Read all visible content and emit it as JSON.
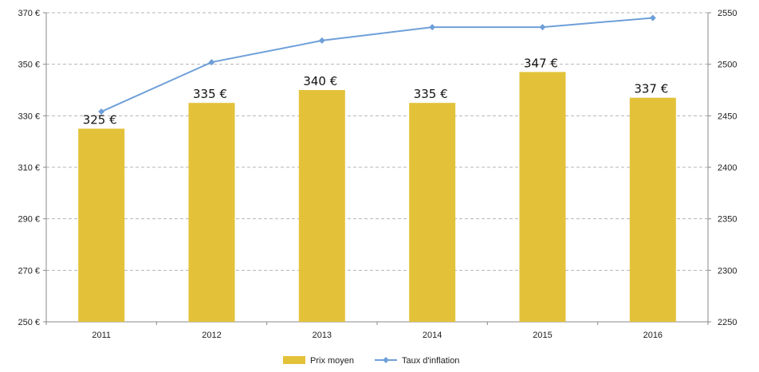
{
  "chart_data": {
    "type": "bar",
    "categories": [
      "2011",
      "2012",
      "2013",
      "2014",
      "2015",
      "2016"
    ],
    "series": [
      {
        "name": "Prix moyen",
        "type": "bar",
        "axis": "left",
        "values": [
          325,
          335,
          340,
          335,
          347,
          337
        ],
        "data_labels": [
          "325 €",
          "335 €",
          "340 €",
          "335 €",
          "347 €",
          "337 €"
        ],
        "color": "#E3C23A"
      },
      {
        "name": "Taux d'inflation",
        "type": "line",
        "axis": "right",
        "values": [
          2454,
          2502,
          2523,
          2536,
          2536,
          2545
        ],
        "color": "#6E9FD8"
      }
    ],
    "y_left": {
      "ylim": [
        250,
        370
      ],
      "ticks": [
        250,
        270,
        290,
        310,
        330,
        350,
        370
      ],
      "tick_labels": [
        "250 €",
        "270 €",
        "290 €",
        "310 €",
        "330 €",
        "350 €",
        "370 €"
      ]
    },
    "y_right": {
      "ylim": [
        2250,
        2550
      ],
      "ticks": [
        2250,
        2300,
        2350,
        2400,
        2450,
        2500,
        2550
      ],
      "tick_labels": [
        "2250",
        "2300",
        "2350",
        "2400",
        "2450",
        "2500",
        "2550"
      ]
    },
    "grid": true,
    "legend_position": "bottom"
  }
}
